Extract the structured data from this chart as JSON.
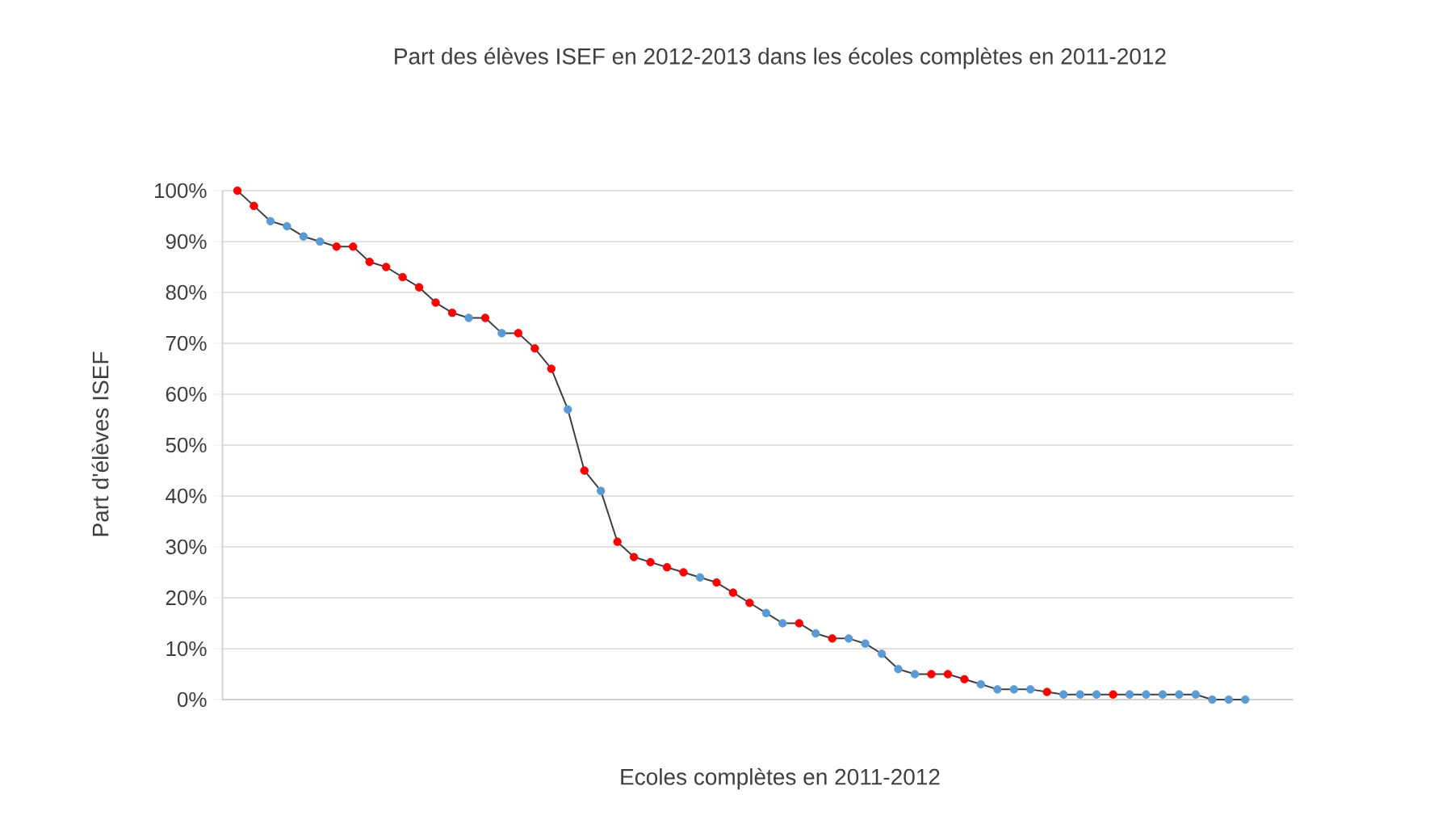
{
  "chart_data": {
    "type": "line",
    "title": "Part des élèves ISEF en 2012-2013 dans les écoles complètes en 2011-2012",
    "xlabel": "Ecoles complètes en 2011-2012",
    "ylabel": "Part d'élèves ISEF",
    "categories": [
      null,
      null,
      null,
      null,
      null,
      null,
      null,
      null,
      null,
      null,
      null,
      null,
      null,
      null,
      null,
      null,
      null,
      null,
      null,
      null,
      null,
      null,
      null,
      null,
      null,
      null,
      null,
      null,
      null,
      null,
      null,
      null,
      null,
      null,
      null,
      null,
      null,
      null,
      null,
      null,
      null,
      null,
      null,
      null,
      null,
      null,
      null,
      null,
      null,
      null,
      null,
      null,
      null,
      null,
      null,
      null,
      null,
      null,
      null,
      null,
      null,
      null
    ],
    "series": [
      {
        "color": "#404040",
        "values": [
          100,
          97,
          94,
          93,
          91,
          90,
          89,
          89,
          86,
          85,
          83,
          81,
          78,
          76,
          75,
          75,
          72,
          72,
          69,
          65,
          57,
          45,
          41,
          31,
          28,
          27,
          26,
          25,
          24,
          23,
          21,
          19,
          17,
          15,
          15,
          13,
          12,
          12,
          11,
          9,
          6,
          5,
          5,
          5,
          4,
          3,
          2,
          2,
          2,
          1.5,
          1,
          1,
          1,
          1,
          1,
          1,
          1,
          1,
          1,
          0,
          0,
          0
        ],
        "colors": [
          "#ff0000",
          "#ff0000",
          "#5b9bd5",
          "#5b9bd5",
          "#5b9bd5",
          "#5b9bd5",
          "#ff0000",
          "#ff0000",
          "#ff0000",
          "#ff0000",
          "#ff0000",
          "#ff0000",
          "#ff0000",
          "#ff0000",
          "#5b9bd5",
          "#ff0000",
          "#5b9bd5",
          "#ff0000",
          "#ff0000",
          "#ff0000",
          "#5b9bd5",
          "#ff0000",
          "#5b9bd5",
          "#ff0000",
          "#ff0000",
          "#ff0000",
          "#ff0000",
          "#ff0000",
          "#5b9bd5",
          "#ff0000",
          "#ff0000",
          "#ff0000",
          "#5b9bd5",
          "#5b9bd5",
          "#ff0000",
          "#5b9bd5",
          "#ff0000",
          "#5b9bd5",
          "#5b9bd5",
          "#5b9bd5",
          "#5b9bd5",
          "#5b9bd5",
          "#ff0000",
          "#ff0000",
          "#ff0000",
          "#5b9bd5",
          "#5b9bd5",
          "#5b9bd5",
          "#5b9bd5",
          "#ff0000",
          "#5b9bd5",
          "#5b9bd5",
          "#5b9bd5",
          "#ff0000",
          "#5b9bd5",
          "#5b9bd5",
          "#5b9bd5",
          "#5b9bd5",
          "#5b9bd5",
          "#5b9bd5",
          "#5b9bd5",
          "#5b9bd5"
        ]
      }
    ],
    "ylim": [
      0,
      100
    ],
    "yticks": [
      {
        "value": 0,
        "label": "0%"
      },
      {
        "value": 10,
        "label": "10%"
      },
      {
        "value": 20,
        "label": "20%"
      },
      {
        "value": 30,
        "label": "30%"
      },
      {
        "value": 40,
        "label": "40%"
      },
      {
        "value": 50,
        "label": "50%"
      },
      {
        "value": 60,
        "label": "60%"
      },
      {
        "value": 70,
        "label": "70%"
      },
      {
        "value": 80,
        "label": "80%"
      },
      {
        "value": 90,
        "label": "90%"
      },
      {
        "value": 100,
        "label": "100%"
      }
    ],
    "grid": "y",
    "marker": "circle",
    "line_style": "solid"
  }
}
